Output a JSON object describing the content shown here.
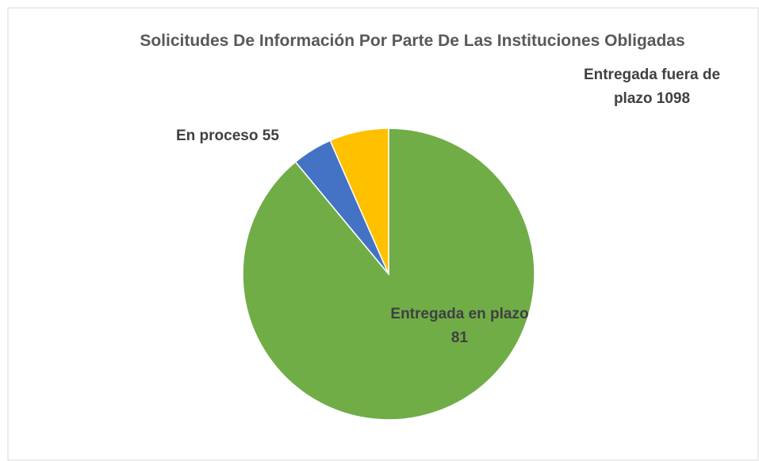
{
  "chart_data": {
    "type": "pie",
    "title": "Solicitudes De Información Por Parte De Las Instituciones Obligadas",
    "categories": [
      "Entregada fuera de plazo",
      "En proceso",
      "Entregada en plazo"
    ],
    "values": [
      1098,
      55,
      81
    ],
    "colors": [
      "#70ad47",
      "#4472c4",
      "#ffc000"
    ]
  }
}
